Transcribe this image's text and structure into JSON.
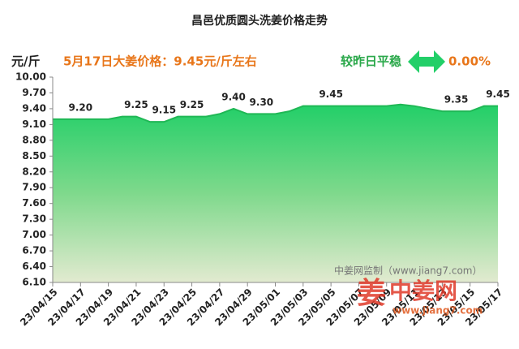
{
  "chart_data": {
    "type": "area",
    "title": "昌邑优质圆头洗姜价格走势",
    "y_label": "元/斤",
    "annotation": "5月17日大姜价格：9.45元/斤左右",
    "change_label": "较昨日平稳",
    "change_value": "0.00%",
    "watermark": "中姜网监制（www.jiang7.com）",
    "logo": "中姜网",
    "logo_url": "www.jiang7.com",
    "categories": [
      "23/04/15",
      null,
      "23/04/17",
      null,
      "23/04/19",
      null,
      "23/04/21",
      null,
      "23/04/23",
      null,
      "23/04/25",
      null,
      "23/04/27",
      null,
      "23/04/29",
      null,
      "23/05/01",
      null,
      "23/05/03",
      null,
      "23/05/05",
      null,
      "23/05/07",
      null,
      "23/05/09",
      null,
      "23/05/11",
      null,
      "23/05/13",
      null,
      "23/05/15",
      null,
      "23/05/17"
    ],
    "values": [
      9.2,
      9.2,
      9.2,
      9.2,
      9.2,
      9.25,
      9.25,
      9.15,
      9.15,
      9.25,
      9.25,
      9.25,
      9.3,
      9.4,
      9.3,
      9.3,
      9.3,
      9.35,
      9.45,
      9.45,
      9.45,
      9.45,
      9.45,
      9.45,
      9.45,
      9.48,
      9.45,
      9.4,
      9.35,
      9.35,
      9.35,
      9.45,
      9.45
    ],
    "value_labels": [
      null,
      null,
      "9.20",
      null,
      null,
      null,
      "9.25",
      null,
      "9.15",
      null,
      "9.25",
      null,
      null,
      "9.40",
      null,
      "9.30",
      null,
      null,
      null,
      null,
      "9.45",
      null,
      null,
      null,
      null,
      null,
      null,
      null,
      null,
      "9.35",
      null,
      null,
      "9.45"
    ],
    "color": "#1fb855",
    "ylim": [
      6.1,
      10.0
    ],
    "yticks": [
      {
        "value": 6.1,
        "label": "6.10"
      },
      {
        "value": 6.4,
        "label": "6.40"
      },
      {
        "value": 6.7,
        "label": "6.70"
      },
      {
        "value": 7.0,
        "label": "7.00"
      },
      {
        "value": 7.3,
        "label": "7.30"
      },
      {
        "value": 7.6,
        "label": "7.60"
      },
      {
        "value": 7.9,
        "label": "7.90"
      },
      {
        "value": 8.2,
        "label": "8.20"
      },
      {
        "value": 8.5,
        "label": "8.50"
      },
      {
        "value": 8.8,
        "label": "8.80"
      },
      {
        "value": 9.1,
        "label": "9.10"
      },
      {
        "value": 9.4,
        "label": "9.40"
      },
      {
        "value": 9.7,
        "label": "9.70"
      },
      {
        "value": 10.0,
        "label": "10.00"
      }
    ],
    "grid": false
  }
}
